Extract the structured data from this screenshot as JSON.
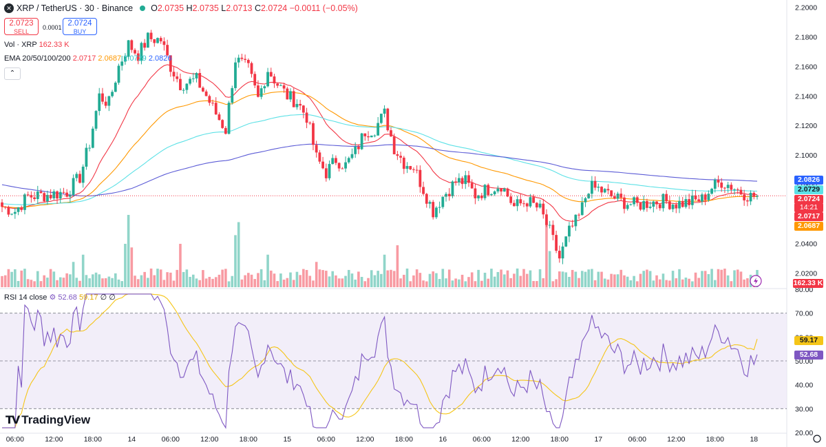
{
  "header": {
    "symbol": "XRP / TetherUS · 30 · Binance",
    "symbol_icon": "x-icon",
    "open_label": "O",
    "open": "2.0735",
    "high_label": "H",
    "high": "2.0735",
    "low_label": "L",
    "low": "2.0713",
    "close_label": "C",
    "close": "2.0724",
    "change": "−0.0011 (−0.05%)"
  },
  "trade": {
    "sell_price": "2.0723",
    "sell_label": "SELL",
    "spread": "0.0001",
    "buy_price": "2.0724",
    "buy_label": "BUY"
  },
  "legends": {
    "vol_label": "Vol · XRP",
    "vol_value": "162.33 K",
    "ema_label": "EMA 20/50/100/200",
    "ema20": "2.0717",
    "ema50": "2.0687",
    "ema100": "2.0729",
    "ema200": "2.0826",
    "rsi_label": "RSI 14 close",
    "rsi_value": "52.68",
    "rsi_ma": "59.17",
    "rsi_extra": "∅ ∅"
  },
  "branding": {
    "name": "TradingView"
  },
  "price_tags": {
    "ema200": "2.0826",
    "ema100": "2.0729",
    "last": "2.0724",
    "countdown": "14:21",
    "ema20": "2.0717",
    "ema50": "2.0687",
    "volume": "162.33 K",
    "rsi_ma": "59.17",
    "rsi": "52.68"
  },
  "colors": {
    "up": "#22ab94",
    "down": "#f23645",
    "ema20": "#f23645",
    "ema50": "#ff9800",
    "ema100": "#5ce1e6",
    "ema200": "#5b5bd6",
    "rsi": "#7e57c2",
    "rsi_ma": "#f5c518"
  },
  "chart_data": {
    "type": "candlestick",
    "title": "XRP / TetherUS · 30 · Binance",
    "price_axis": {
      "min": 2.01,
      "max": 2.205,
      "ticks": [
        "2.2000",
        "2.1800",
        "2.1600",
        "2.1400",
        "2.1200",
        "2.1000",
        "2.0800",
        "2.0600",
        "2.0400",
        "2.0200"
      ]
    },
    "rsi_axis": {
      "min": 20,
      "max": 80,
      "ticks": [
        "80.00",
        "70.00",
        "60.00",
        "50.00",
        "40.00",
        "30.00",
        "20.00"
      ],
      "upper_band": 70,
      "lower_band": 30
    },
    "x_labels": [
      "06:00",
      "12:00",
      "18:00",
      "14",
      "06:00",
      "12:00",
      "18:00",
      "15",
      "06:00",
      "12:00",
      "18:00",
      "16",
      "06:00",
      "12:00",
      "18:00",
      "17",
      "06:00",
      "12:00",
      "18:00",
      "18"
    ],
    "x_label_positions_bars": [
      4,
      16,
      28,
      40,
      52,
      64,
      76,
      88,
      100,
      112,
      124,
      136,
      148,
      160,
      172,
      184,
      196,
      208,
      220,
      232
    ],
    "keypoints": [
      [
        0,
        2.065
      ],
      [
        4,
        2.062
      ],
      [
        8,
        2.072
      ],
      [
        14,
        2.073
      ],
      [
        20,
        2.075
      ],
      [
        24,
        2.085
      ],
      [
        27,
        2.108
      ],
      [
        30,
        2.14
      ],
      [
        33,
        2.135
      ],
      [
        36,
        2.16
      ],
      [
        39,
        2.175
      ],
      [
        42,
        2.168
      ],
      [
        45,
        2.179
      ],
      [
        49,
        2.178
      ],
      [
        52,
        2.16
      ],
      [
        55,
        2.148
      ],
      [
        60,
        2.151
      ],
      [
        63,
        2.14
      ],
      [
        66,
        2.128
      ],
      [
        69,
        2.117
      ],
      [
        72,
        2.165
      ],
      [
        76,
        2.158
      ],
      [
        79,
        2.138
      ],
      [
        82,
        2.158
      ],
      [
        85,
        2.148
      ],
      [
        88,
        2.14
      ],
      [
        91,
        2.136
      ],
      [
        94,
        2.126
      ],
      [
        97,
        2.098
      ],
      [
        100,
        2.088
      ],
      [
        103,
        2.097
      ],
      [
        106,
        2.093
      ],
      [
        109,
        2.102
      ],
      [
        112,
        2.116
      ],
      [
        115,
        2.118
      ],
      [
        118,
        2.128
      ],
      [
        121,
        2.105
      ],
      [
        124,
        2.095
      ],
      [
        127,
        2.092
      ],
      [
        130,
        2.077
      ],
      [
        133,
        2.062
      ],
      [
        136,
        2.072
      ],
      [
        140,
        2.082
      ],
      [
        143,
        2.082
      ],
      [
        146,
        2.073
      ],
      [
        150,
        2.077
      ],
      [
        154,
        2.08
      ],
      [
        158,
        2.065
      ],
      [
        162,
        2.069
      ],
      [
        166,
        2.063
      ],
      [
        169,
        2.048
      ],
      [
        172,
        2.03
      ],
      [
        175,
        2.048
      ],
      [
        178,
        2.058
      ],
      [
        181,
        2.078
      ],
      [
        184,
        2.077
      ],
      [
        188,
        2.072
      ],
      [
        192,
        2.068
      ],
      [
        196,
        2.066
      ],
      [
        200,
        2.068
      ],
      [
        204,
        2.069
      ],
      [
        208,
        2.067
      ],
      [
        212,
        2.068
      ],
      [
        216,
        2.07
      ],
      [
        219,
        2.078
      ],
      [
        222,
        2.082
      ],
      [
        225,
        2.079
      ],
      [
        228,
        2.075
      ],
      [
        231,
        2.072
      ],
      [
        233,
        2.0724
      ]
    ],
    "volume_spikes": [
      [
        22,
        0.35
      ],
      [
        25,
        0.45
      ],
      [
        38,
        0.6
      ],
      [
        39,
        1.0
      ],
      [
        40,
        0.55
      ],
      [
        55,
        0.6
      ],
      [
        72,
        0.72
      ],
      [
        73,
        0.9
      ],
      [
        82,
        0.45
      ],
      [
        97,
        0.35
      ],
      [
        118,
        0.45
      ],
      [
        122,
        0.58
      ],
      [
        168,
        0.9
      ],
      [
        169,
        0.5
      ],
      [
        221,
        0.25
      ]
    ],
    "ema_periods": [
      20,
      50,
      100,
      200
    ],
    "rsi_period": 14,
    "rsi_ma_period": 14,
    "last_price": 2.0724,
    "volume_unit": "XRP"
  }
}
